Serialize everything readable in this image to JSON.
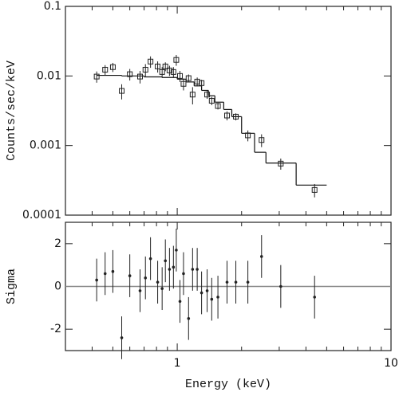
{
  "chart_data": [
    {
      "type": "scatter",
      "xlog": true,
      "ylog": true,
      "ylabel": "Counts/sec/keV",
      "xlim": [
        0.3,
        10
      ],
      "ylim": [
        0.0001,
        0.1
      ],
      "xticks": [
        1,
        10
      ],
      "xminorticks": [
        0.4,
        0.5,
        0.6,
        0.7,
        0.8,
        0.9,
        2,
        3,
        4,
        5,
        6,
        7,
        8,
        9
      ],
      "yticks": [
        0.1,
        0.01,
        0.001,
        0.0001
      ],
      "color": "#222",
      "x": [
        0.42,
        0.46,
        0.5,
        0.55,
        0.6,
        0.67,
        0.71,
        0.75,
        0.81,
        0.85,
        0.88,
        0.92,
        0.96,
        0.99,
        1.03,
        1.07,
        1.13,
        1.18,
        1.24,
        1.3,
        1.38,
        1.45,
        1.55,
        1.71,
        1.88,
        2.14,
        2.48,
        3.05,
        4.39
      ],
      "values": [
        0.0098,
        0.0123,
        0.0134,
        0.0061,
        0.0106,
        0.0098,
        0.0123,
        0.0161,
        0.0137,
        0.0114,
        0.0137,
        0.012,
        0.0114,
        0.017,
        0.01,
        0.0077,
        0.0093,
        0.0054,
        0.0083,
        0.0079,
        0.0054,
        0.0044,
        0.0037,
        0.0027,
        0.0026,
        0.0014,
        0.0012,
        0.00055,
        0.00023
      ],
      "errors": [
        0.0018,
        0.002,
        0.002,
        0.0015,
        0.002,
        0.002,
        0.0025,
        0.003,
        0.0025,
        0.002,
        0.002,
        0.002,
        0.002,
        0.003,
        0.0018,
        0.0015,
        0.0012,
        0.0015,
        0.0012,
        0.0009,
        0.0007,
        0.0006,
        0.0004,
        0.0004,
        0.0003,
        0.00025,
        0.00025,
        0.0001,
        5e-05
      ],
      "model": {
        "bins": [
          0.42,
          0.55,
          0.7,
          0.85,
          1.0,
          1.1,
          1.2,
          1.3,
          1.4,
          1.5,
          1.65,
          1.8,
          2.0,
          2.3,
          2.6,
          3.6,
          5.0
        ],
        "values": [
          0.0102,
          0.01,
          0.0097,
          0.0095,
          0.009,
          0.0082,
          0.0072,
          0.0062,
          0.0052,
          0.0042,
          0.0033,
          0.0026,
          0.0015,
          0.0008,
          0.00056,
          0.00027
        ]
      }
    },
    {
      "type": "scatter",
      "xlog": true,
      "xlabel": "Energy (keV)",
      "ylabel": "Sigma",
      "xlim": [
        0.3,
        10
      ],
      "ylim": [
        -3,
        3
      ],
      "xticks": [
        1,
        10
      ],
      "xminorticks": [
        0.4,
        0.5,
        0.6,
        0.7,
        0.8,
        0.9,
        2,
        3,
        4,
        5,
        6,
        7,
        8,
        9
      ],
      "yticks": [
        -2,
        0,
        2
      ],
      "color": "#222",
      "reference_line": 0,
      "x": [
        0.42,
        0.46,
        0.5,
        0.55,
        0.6,
        0.67,
        0.71,
        0.75,
        0.81,
        0.85,
        0.88,
        0.92,
        0.96,
        0.99,
        1.03,
        1.07,
        1.13,
        1.18,
        1.24,
        1.3,
        1.38,
        1.45,
        1.55,
        1.71,
        1.88,
        2.14,
        2.48,
        3.05,
        4.39
      ],
      "values": [
        0.3,
        0.6,
        0.7,
        -2.4,
        0.5,
        -0.2,
        0.4,
        1.3,
        0.2,
        -0.1,
        1.2,
        0.8,
        0.9,
        1.7,
        -0.7,
        0.6,
        -1.5,
        0.8,
        0.8,
        -0.3,
        -0.2,
        -0.6,
        -0.5,
        0.2,
        0.2,
        0.2,
        1.4,
        0,
        -0.5
      ],
      "errors": [
        1,
        1,
        1,
        1,
        1,
        1,
        1,
        1,
        1,
        1,
        1,
        1,
        1,
        1,
        1,
        1,
        1,
        1,
        1,
        1,
        1,
        1,
        1,
        1,
        1,
        1,
        1,
        1,
        1
      ]
    }
  ]
}
